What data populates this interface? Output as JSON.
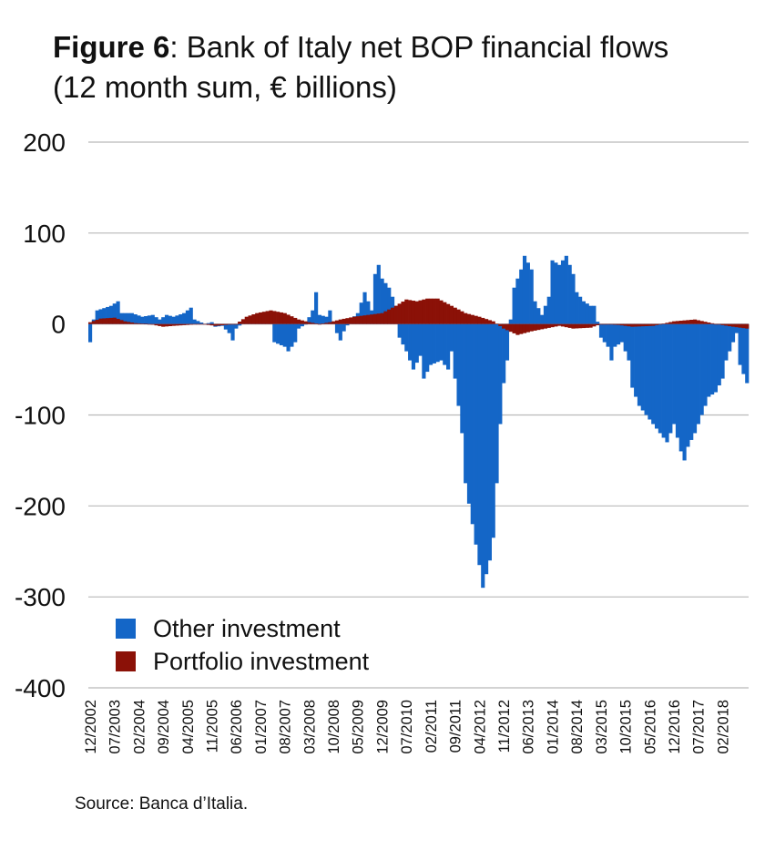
{
  "title": {
    "figure_label": "Figure 6",
    "sep": ": ",
    "line1": "Bank of Italy net BOP financial flows",
    "line2": "(12 month sum, € billions)"
  },
  "source": "Source: Banca d’Italia.",
  "colors": {
    "other": "#1466c7",
    "portfolio": "#8b1107",
    "grid": "#b9b9b9"
  },
  "chart_data": {
    "type": "bar",
    "stacked": false,
    "title": "Bank of Italy net BOP financial flows (12 month sum, € billions)",
    "xlabel": "",
    "ylabel": "",
    "ylim": [
      -400,
      200
    ],
    "yticks": [
      200,
      100,
      0,
      -100,
      -200,
      -300,
      -400
    ],
    "x_start": "12/2002",
    "x_end": "09/2018",
    "xtick_labels": [
      "12/2002",
      "07/2003",
      "02/2004",
      "09/2004",
      "04/2005",
      "11/2005",
      "06/2006",
      "01/2007",
      "08/2007",
      "03/2008",
      "10/2008",
      "05/2009",
      "12/2009",
      "07/2010",
      "02/2011",
      "09/2011",
      "04/2012",
      "11/2012",
      "06/2013",
      "01/2014",
      "08/2014",
      "03/2015",
      "10/2015",
      "05/2016",
      "12/2016",
      "07/2017",
      "02/2018"
    ],
    "legend": [
      "Other investment",
      "Portfolio investment"
    ],
    "legend_position": "bottom-left",
    "series": [
      {
        "name": "Other investment",
        "knots": [
          [
            "12/2002",
            -20
          ],
          [
            "01/2003",
            5
          ],
          [
            "02/2003",
            15
          ],
          [
            "06/2003",
            20
          ],
          [
            "08/2003",
            25
          ],
          [
            "09/2003",
            12
          ],
          [
            "12/2003",
            12
          ],
          [
            "03/2004",
            8
          ],
          [
            "06/2004",
            10
          ],
          [
            "08/2004",
            5
          ],
          [
            "10/2004",
            10
          ],
          [
            "12/2004",
            8
          ],
          [
            "03/2005",
            12
          ],
          [
            "05/2005",
            18
          ],
          [
            "06/2005",
            5
          ],
          [
            "09/2005",
            0
          ],
          [
            "11/2005",
            2
          ],
          [
            "12/2005",
            -3
          ],
          [
            "02/2006",
            -2
          ],
          [
            "04/2006",
            -10
          ],
          [
            "05/2006",
            -18
          ],
          [
            "06/2006",
            -5
          ],
          [
            "09/2006",
            5
          ],
          [
            "12/2006",
            10
          ],
          [
            "04/2007",
            12
          ],
          [
            "05/2007",
            -20
          ],
          [
            "08/2007",
            -25
          ],
          [
            "09/2007",
            -30
          ],
          [
            "11/2007",
            -20
          ],
          [
            "12/2007",
            -5
          ],
          [
            "02/2008",
            0
          ],
          [
            "04/2008",
            15
          ],
          [
            "05/2008",
            35
          ],
          [
            "06/2008",
            10
          ],
          [
            "08/2008",
            8
          ],
          [
            "09/2008",
            15
          ],
          [
            "11/2008",
            -10
          ],
          [
            "12/2008",
            -18
          ],
          [
            "01/2009",
            -8
          ],
          [
            "03/2009",
            5
          ],
          [
            "05/2009",
            12
          ],
          [
            "07/2009",
            35
          ],
          [
            "09/2009",
            15
          ],
          [
            "10/2009",
            55
          ],
          [
            "11/2009",
            65
          ],
          [
            "12/2009",
            50
          ],
          [
            "02/2010",
            40
          ],
          [
            "04/2010",
            20
          ],
          [
            "05/2010",
            -15
          ],
          [
            "07/2010",
            -30
          ],
          [
            "09/2010",
            -50
          ],
          [
            "11/2010",
            -35
          ],
          [
            "12/2010",
            -60
          ],
          [
            "02/2011",
            -45
          ],
          [
            "05/2011",
            -40
          ],
          [
            "07/2011",
            -50
          ],
          [
            "08/2011",
            -30
          ],
          [
            "09/2011",
            -60
          ],
          [
            "10/2011",
            -90
          ],
          [
            "11/2011",
            -120
          ],
          [
            "12/2011",
            -175
          ],
          [
            "02/2012",
            -220
          ],
          [
            "04/2012",
            -265
          ],
          [
            "05/2012",
            -290
          ],
          [
            "07/2012",
            -260
          ],
          [
            "08/2012",
            -235
          ],
          [
            "09/2012",
            -175
          ],
          [
            "10/2012",
            -110
          ],
          [
            "11/2012",
            -65
          ],
          [
            "12/2012",
            -40
          ],
          [
            "01/2013",
            5
          ],
          [
            "02/2013",
            40
          ],
          [
            "04/2013",
            60
          ],
          [
            "05/2013",
            75
          ],
          [
            "07/2013",
            60
          ],
          [
            "08/2013",
            25
          ],
          [
            "10/2013",
            10
          ],
          [
            "12/2013",
            30
          ],
          [
            "01/2014",
            70
          ],
          [
            "03/2014",
            65
          ],
          [
            "05/2014",
            75
          ],
          [
            "07/2014",
            55
          ],
          [
            "08/2014",
            35
          ],
          [
            "10/2014",
            25
          ],
          [
            "12/2014",
            20
          ],
          [
            "01/2015",
            20
          ],
          [
            "03/2015",
            -15
          ],
          [
            "05/2015",
            -25
          ],
          [
            "06/2015",
            -40
          ],
          [
            "07/2015",
            -25
          ],
          [
            "09/2015",
            -20
          ],
          [
            "11/2015",
            -40
          ],
          [
            "12/2015",
            -70
          ],
          [
            "02/2016",
            -90
          ],
          [
            "05/2016",
            -105
          ],
          [
            "06/2016",
            -110
          ],
          [
            "08/2016",
            -120
          ],
          [
            "10/2016",
            -130
          ],
          [
            "12/2016",
            -110
          ],
          [
            "02/2017",
            -140
          ],
          [
            "03/2017",
            -150
          ],
          [
            "04/2017",
            -135
          ],
          [
            "06/2017",
            -120
          ],
          [
            "08/2017",
            -100
          ],
          [
            "10/2017",
            -80
          ],
          [
            "12/2017",
            -75
          ],
          [
            "02/2018",
            -60
          ],
          [
            "03/2018",
            -40
          ],
          [
            "05/2018",
            -20
          ],
          [
            "06/2018",
            -10
          ],
          [
            "07/2018",
            -45
          ],
          [
            "09/2018",
            -65
          ]
        ]
      },
      {
        "name": "Portfolio investment",
        "knots": [
          [
            "12/2002",
            2
          ],
          [
            "03/2003",
            6
          ],
          [
            "07/2003",
            7
          ],
          [
            "10/2003",
            3
          ],
          [
            "01/2004",
            1
          ],
          [
            "05/2004",
            0
          ],
          [
            "09/2004",
            -3
          ],
          [
            "12/2004",
            -2
          ],
          [
            "04/2005",
            -1
          ],
          [
            "08/2005",
            0
          ],
          [
            "12/2005",
            -2
          ],
          [
            "06/2006",
            0
          ],
          [
            "09/2006",
            8
          ],
          [
            "12/2006",
            12
          ],
          [
            "04/2007",
            15
          ],
          [
            "08/2007",
            12
          ],
          [
            "12/2007",
            5
          ],
          [
            "03/2008",
            2
          ],
          [
            "06/2008",
            0
          ],
          [
            "09/2008",
            2
          ],
          [
            "12/2008",
            5
          ],
          [
            "04/2009",
            8
          ],
          [
            "08/2009",
            10
          ],
          [
            "12/2009",
            12
          ],
          [
            "04/2010",
            20
          ],
          [
            "07/2010",
            27
          ],
          [
            "10/2010",
            25
          ],
          [
            "01/2011",
            28
          ],
          [
            "04/2011",
            28
          ],
          [
            "08/2011",
            20
          ],
          [
            "12/2011",
            12
          ],
          [
            "04/2012",
            8
          ],
          [
            "08/2012",
            3
          ],
          [
            "11/2012",
            -5
          ],
          [
            "03/2013",
            -12
          ],
          [
            "07/2013",
            -8
          ],
          [
            "11/2013",
            -5
          ],
          [
            "03/2014",
            -2
          ],
          [
            "07/2014",
            -5
          ],
          [
            "12/2014",
            -4
          ],
          [
            "03/2015",
            0
          ],
          [
            "08/2015",
            -1
          ],
          [
            "12/2015",
            -3
          ],
          [
            "06/2016",
            -2
          ],
          [
            "12/2016",
            3
          ],
          [
            "06/2017",
            5
          ],
          [
            "12/2017",
            0
          ],
          [
            "05/2018",
            -3
          ],
          [
            "09/2018",
            -5
          ]
        ]
      }
    ]
  }
}
